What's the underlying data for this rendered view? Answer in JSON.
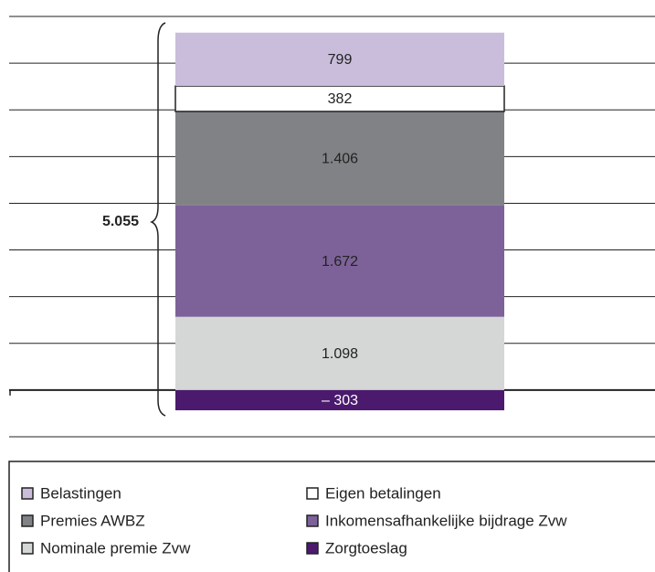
{
  "chart_data": {
    "type": "stacked_bar",
    "categories": [
      null
    ],
    "series": [
      {
        "name": "Belastingen",
        "color": "#c9bddb",
        "values": [
          799
        ]
      },
      {
        "name": "Eigen betalingen",
        "color": "#ffffff",
        "values": [
          382
        ]
      },
      {
        "name": "Premies AWBZ",
        "color": "#808285",
        "values": [
          1406
        ],
        "value_labels": [
          "1.406"
        ]
      },
      {
        "name": "Inkomensafhankelijke bijdrage Zvw",
        "color": "#7d6299",
        "values": [
          1672
        ],
        "value_labels": [
          "1.672"
        ]
      },
      {
        "name": "Nominale premie Zvw",
        "color": "#d5d6d6",
        "values": [
          1098
        ],
        "value_labels": [
          "1.098"
        ]
      },
      {
        "name": "Zorgtoeslag",
        "color": "#4b1a6e",
        "values": [
          -303
        ],
        "value_labels": [
          "– 303"
        ]
      }
    ],
    "annotation": "5.055",
    "ylim": [
      -700,
      5600
    ],
    "yticks": [
      -700,
      0,
      700,
      1400,
      2100,
      2800,
      3500,
      4200,
      4900,
      5600
    ],
    "grid": true
  }
}
